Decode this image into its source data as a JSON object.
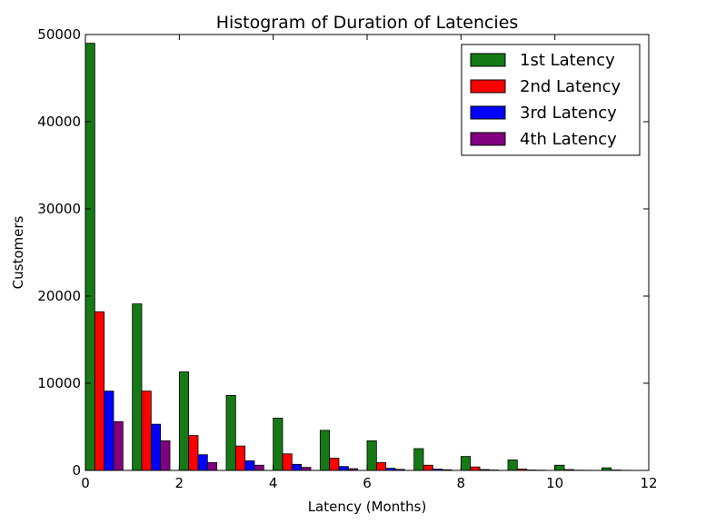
{
  "chart_data": {
    "type": "bar",
    "title": "Histogram of Duration of Latencies",
    "xlabel": "Latency (Months)",
    "ylabel": "Customers",
    "xlim": [
      0,
      12
    ],
    "ylim": [
      0,
      50000
    ],
    "xticks": [
      0,
      2,
      4,
      6,
      8,
      10,
      12
    ],
    "yticks": [
      0,
      10000,
      20000,
      30000,
      40000,
      50000
    ],
    "grid": false,
    "legend_position": "top-right",
    "bin_edges": [
      0,
      1,
      2,
      3,
      4,
      5,
      6,
      7,
      8,
      9,
      10,
      11,
      12
    ],
    "series": [
      {
        "name": "1st Latency",
        "color": "#157a15",
        "values": [
          49000,
          19100,
          11300,
          8600,
          6000,
          4600,
          3400,
          2500,
          1600,
          1200,
          600,
          300
        ]
      },
      {
        "name": "2nd Latency",
        "color": "#ff0000",
        "values": [
          18200,
          9100,
          4000,
          2800,
          1900,
          1400,
          900,
          600,
          400,
          150,
          100,
          50
        ]
      },
      {
        "name": "3rd Latency",
        "color": "#0000ff",
        "values": [
          9100,
          5300,
          1800,
          1100,
          700,
          450,
          250,
          150,
          100,
          50,
          30,
          20
        ]
      },
      {
        "name": "4th Latency",
        "color": "#800080",
        "values": [
          5600,
          3400,
          900,
          600,
          350,
          200,
          120,
          80,
          50,
          30,
          20,
          10
        ]
      }
    ]
  }
}
